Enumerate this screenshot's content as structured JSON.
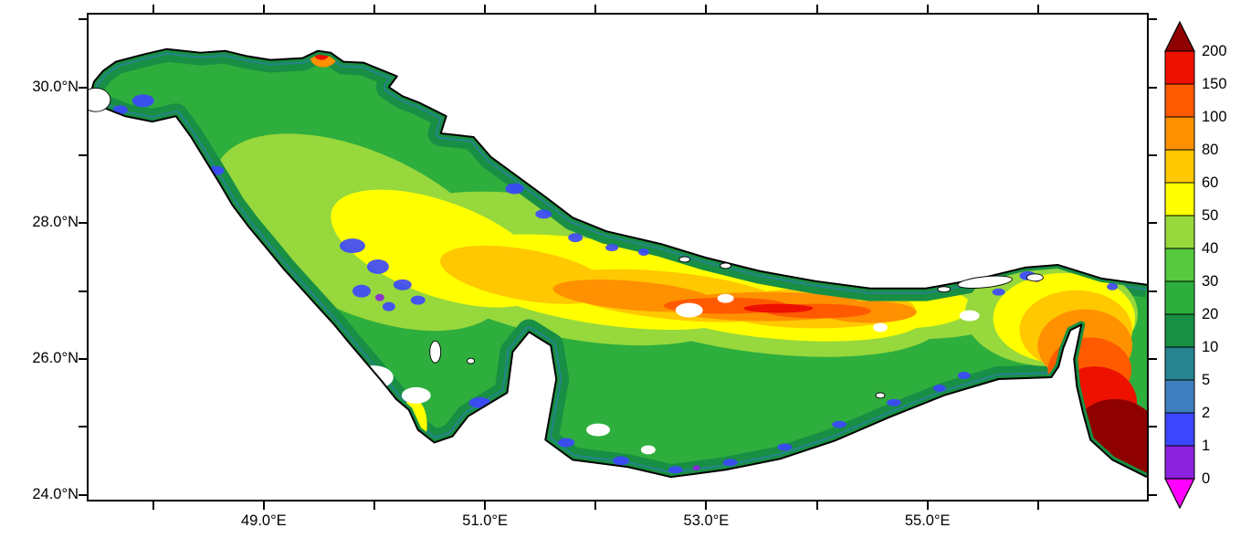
{
  "chart_data": {
    "type": "heatmap",
    "title": "",
    "description": "Filled color map of a gridded quantity over the Persian Gulf and Strait of Hormuz; white areas are land or missing data.",
    "x_axis": {
      "label_format": "degrees east",
      "range": [
        47.4,
        57.0
      ],
      "ticks": [
        48,
        49,
        50,
        51,
        52,
        53,
        54,
        55,
        56
      ],
      "labels": {
        "49": "49.0°E",
        "51": "51.0°E",
        "53": "53.0°E",
        "55": "55.0°E"
      }
    },
    "y_axis": {
      "label_format": "degrees north",
      "range": [
        23.9,
        31.1
      ],
      "ticks": [
        24,
        25,
        26,
        27,
        28,
        29,
        30,
        31
      ],
      "labels": {
        "24": "24.0°N",
        "26": "26.0°N",
        "28": "28.0°N",
        "30": "30.0°N"
      }
    },
    "colorbar": {
      "levels": [
        0,
        1,
        2,
        5,
        10,
        20,
        30,
        40,
        50,
        60,
        80,
        100,
        150,
        200
      ],
      "tick_labels_top_to_bottom": [
        "200",
        "150",
        "100",
        "80",
        "60",
        "50",
        "40",
        "30",
        "20",
        "10",
        "5",
        "2",
        "1",
        "0"
      ],
      "segment_colors_low_to_high": [
        "#8b22dd",
        "#3c46ff",
        "#3f7fbf",
        "#26838f",
        "#188f44",
        "#2eae3c",
        "#56c93f",
        "#97d83c",
        "#ffff00",
        "#ffc800",
        "#ff9000",
        "#ff5a00",
        "#ee1100"
      ],
      "under_arrow_color": "#ff00ff",
      "over_arrow_color": "#8f0000",
      "position": "right"
    },
    "regions": [
      {
        "area": "northwest basin (head of gulf)",
        "approx_values": "10-50"
      },
      {
        "area": "central axial band",
        "approx_values": "60-150"
      },
      {
        "area": "coastal margins and shallows",
        "approx_values": "0-10"
      },
      {
        "area": "strait of hormuz / southeast corner",
        "approx_values": "100-200 and above (dark red)"
      },
      {
        "area": "gulf of salwa patch west of qatar",
        "approx_values": "50-80"
      },
      {
        "area": "scattered white patches",
        "approx_values": "no data"
      }
    ],
    "grid": false,
    "legend_position": "right colorbar with over/under arrows"
  }
}
